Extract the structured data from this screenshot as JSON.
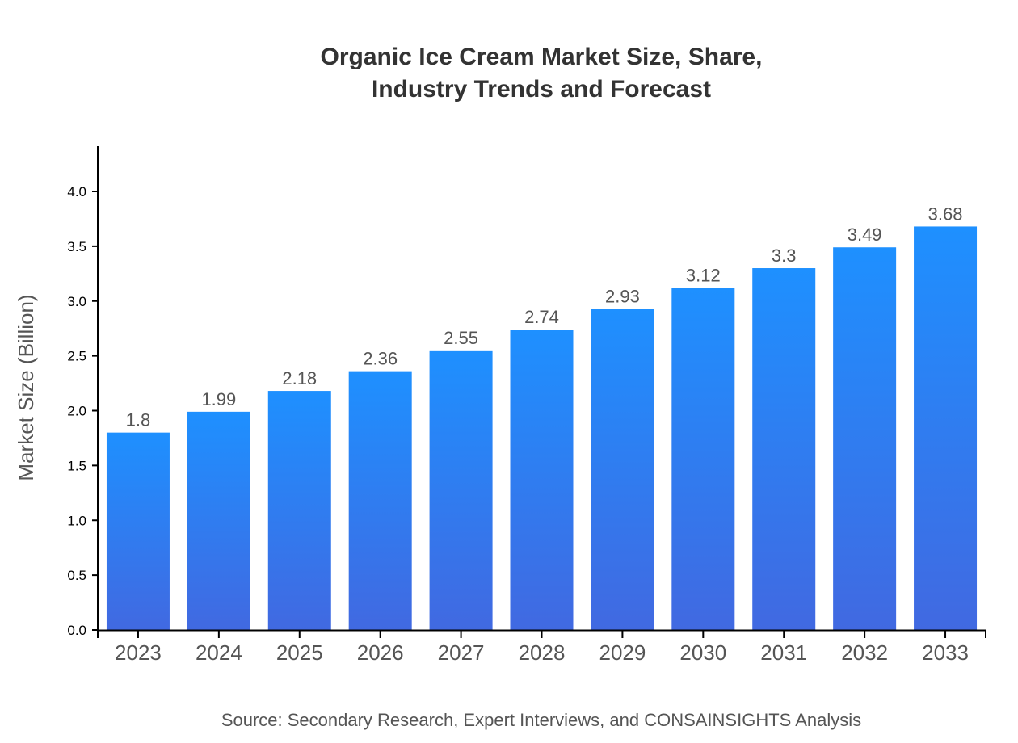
{
  "chart_data": {
    "type": "bar",
    "title_lines": [
      "Organic Ice Cream Market Size, Share,",
      "Industry Trends and Forecast"
    ],
    "xlabel": "",
    "ylabel": "Market Size (Billion)",
    "categories": [
      "2023",
      "2024",
      "2025",
      "2026",
      "2027",
      "2028",
      "2029",
      "2030",
      "2031",
      "2032",
      "2033"
    ],
    "values": [
      1.8,
      1.99,
      2.18,
      2.36,
      2.55,
      2.74,
      2.93,
      3.12,
      3.3,
      3.49,
      3.68
    ],
    "data_labels": [
      "1.8",
      "1.99",
      "2.18",
      "2.36",
      "2.55",
      "2.74",
      "2.93",
      "3.12",
      "3.3",
      "3.49",
      "3.68"
    ],
    "yticks": [
      "0.0",
      "0.5",
      "1.0",
      "1.5",
      "2.0",
      "2.5",
      "3.0",
      "3.5",
      "4.0"
    ],
    "ylim": [
      0,
      4.41
    ],
    "grid": false,
    "legend": "none",
    "colors": {
      "bar_top": "#1e90ff",
      "bar_bottom": "#4169e1"
    },
    "source": "Source: Secondary Research, Expert Interviews, and CONSAINSIGHTS Analysis"
  }
}
